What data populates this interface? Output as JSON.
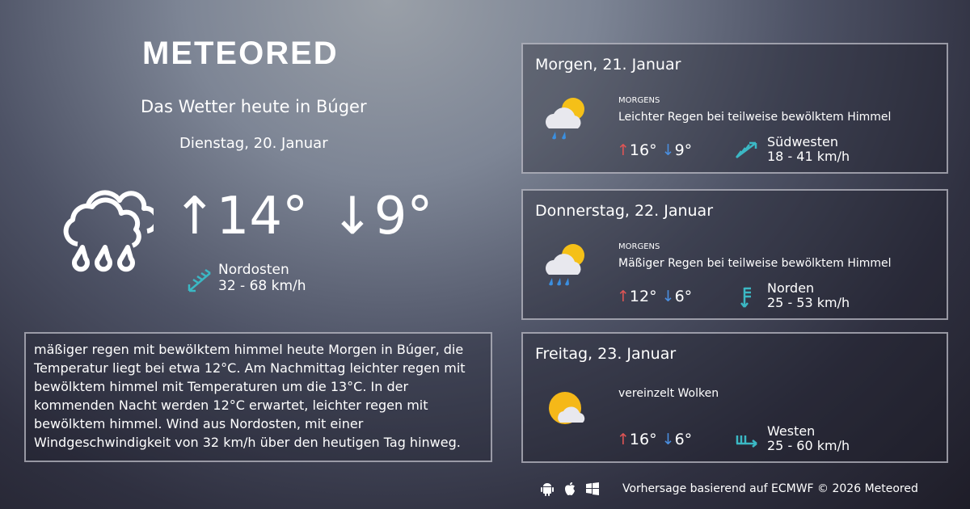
{
  "brand": "METEORED",
  "header": {
    "title": "Das Wetter heute in Búger",
    "date": "Dienstag, 20. Januar"
  },
  "today": {
    "icon": "rain-cloud-icon",
    "max": "↑14°",
    "min": "↓9°",
    "wind_dir": "Nordosten",
    "wind_speed": "32 - 68 km/h"
  },
  "description": "mäßiger regen mit bewölktem himmel heute Morgen in Búger, die Temperatur liegt bei etwa 12°C. Am Nachmittag leichter regen mit bewölktem himmel mit Temperaturen um die 13°C. In der kommenden Nacht werden 12°C erwartet, leichter regen mit bewölktem himmel. Wind aus Nordosten, mit einer Windgeschwindigkeit von 32 km/h über den heutigen Tag hinweg.",
  "forecast": [
    {
      "day": "Morgen, 21. Januar",
      "period": "MORGENS",
      "condition": "Leichter Regen bei teilweise bewölktem Himmel",
      "max": "16°",
      "min": "9°",
      "wind_dir": "Südwesten",
      "wind_speed": "18 - 41 km/h",
      "icon": "sun-cloud-rain-icon"
    },
    {
      "day": "Donnerstag, 22. Januar",
      "period": "MORGENS",
      "condition": "Mäßiger Regen bei teilweise bewölktem Himmel",
      "max": "12°",
      "min": "6°",
      "wind_dir": "Norden",
      "wind_speed": "25 - 53 km/h",
      "icon": "sun-cloud-rain-icon"
    },
    {
      "day": "Freitag, 23. Januar",
      "period": "",
      "condition": "vereinzelt Wolken",
      "max": "16°",
      "min": "6°",
      "wind_dir": "Westen",
      "wind_speed": "25 - 60 km/h",
      "icon": "sun-cloud-icon"
    }
  ],
  "footer": {
    "credit": "Vorhersage basierend auf ECMWF © 2026 Meteored",
    "icons": [
      "android-icon",
      "apple-icon",
      "windows-icon"
    ]
  },
  "colors": {
    "max": "#e05555",
    "min": "#4a8fe0",
    "wind": "#3bb8c4"
  }
}
